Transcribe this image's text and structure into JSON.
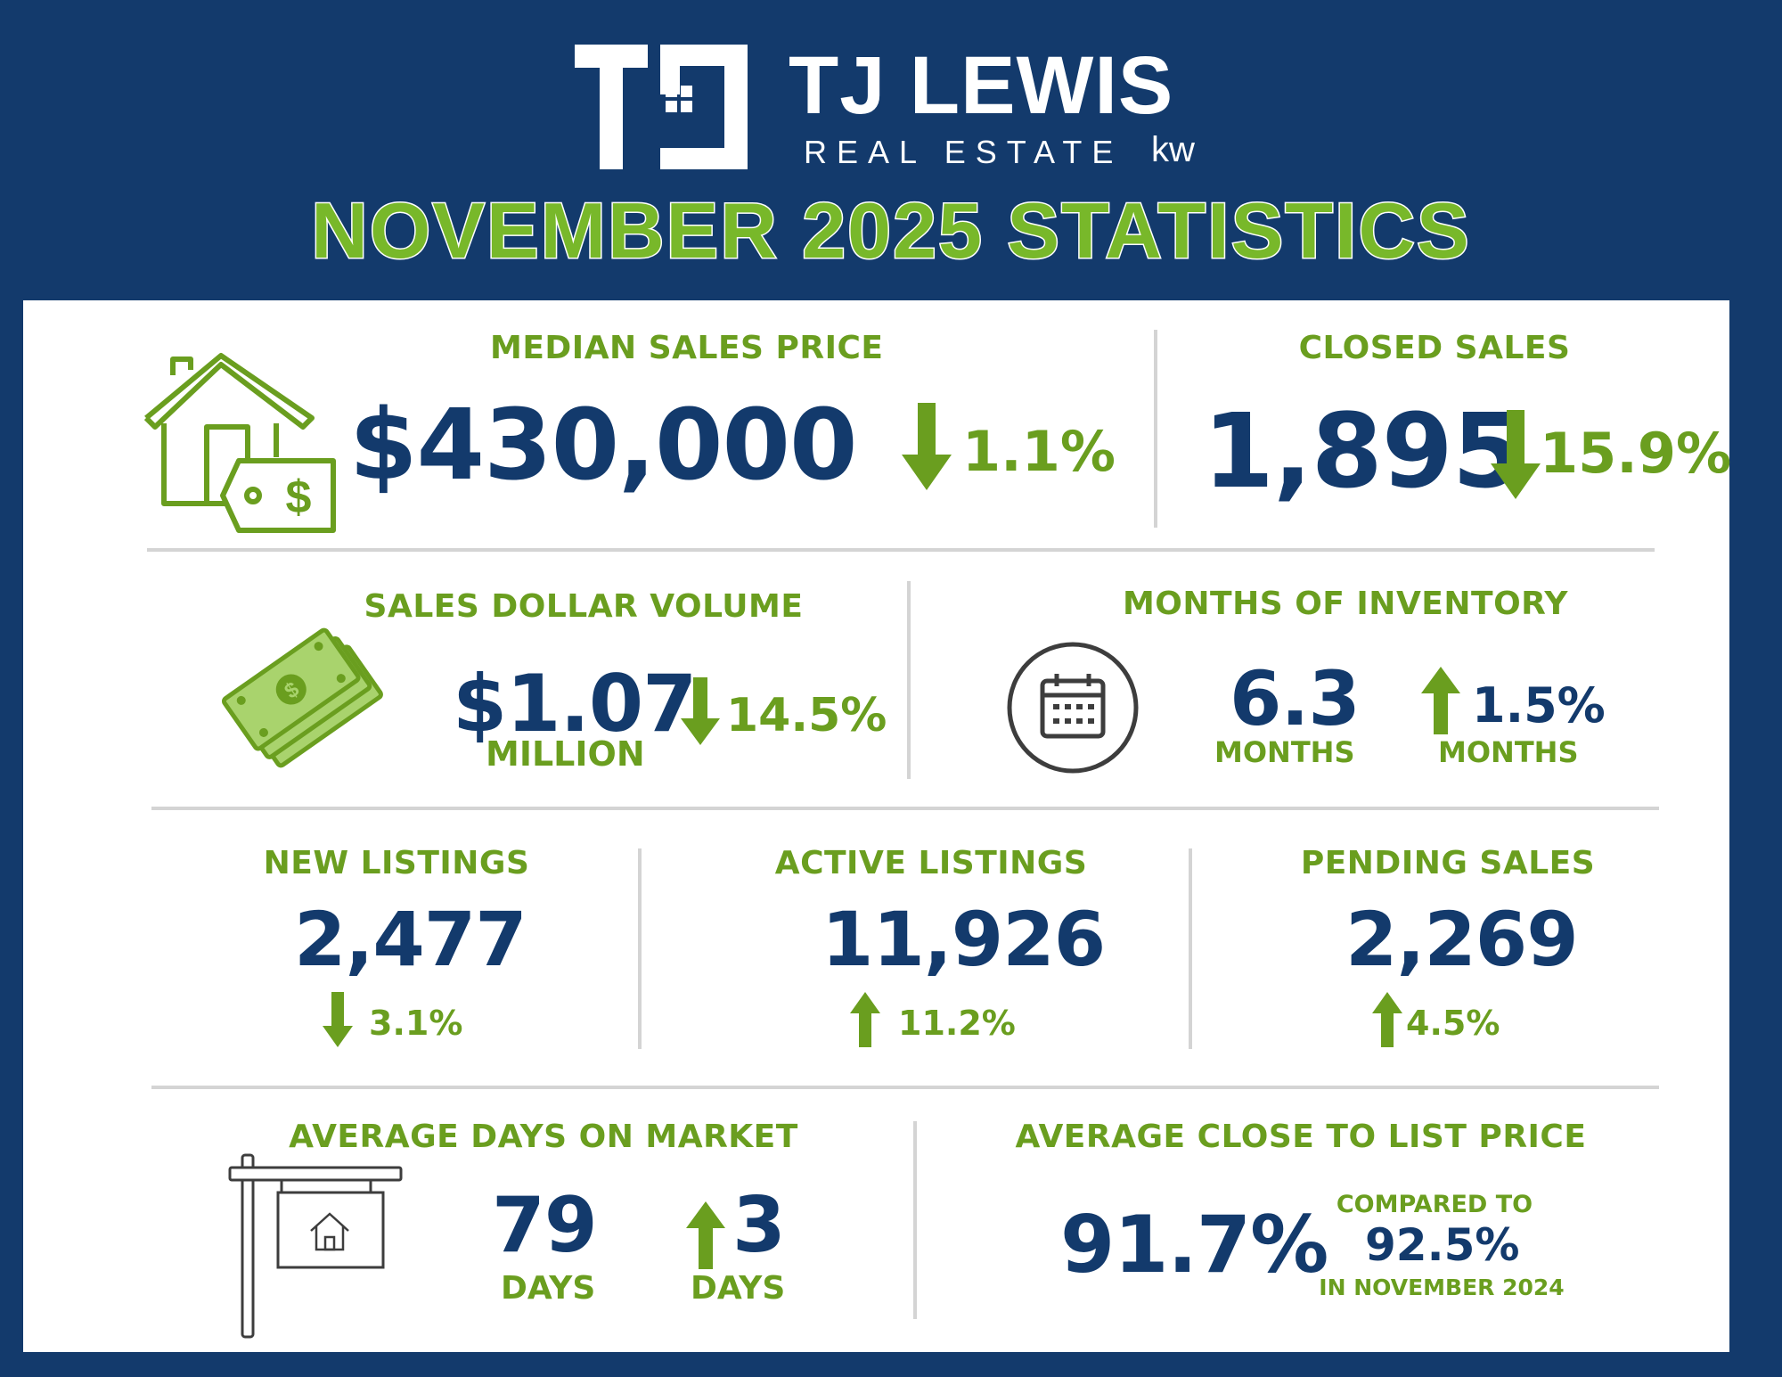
{
  "brand": {
    "name": "TJ LEWIS",
    "tagline": "REAL ESTATE",
    "affiliate": "kw"
  },
  "headline": "NOVEMBER 2025 STATISTICS",
  "colors": {
    "navy": "#133a6c",
    "green": "#6a9e1f",
    "bright_green": "#78b82a"
  },
  "median_sales_price": {
    "label": "MEDIAN SALES PRICE",
    "value": "$430,000",
    "change": "1.1%",
    "direction": "down",
    "icon": "house-price-tag-icon"
  },
  "closed_sales": {
    "label": "CLOSED SALES",
    "value": "1,895",
    "change": "15.9%",
    "direction": "down"
  },
  "sales_dollar_volume": {
    "label": "SALES DOLLAR VOLUME",
    "value": "$1.07",
    "unit": "MILLION",
    "change": "14.5%",
    "direction": "down",
    "icon": "money-bills-icon"
  },
  "months_of_inventory": {
    "label": "MONTHS OF INVENTORY",
    "value": "6.3",
    "unit": "MONTHS",
    "change": "1.5%",
    "change_unit": "MONTHS",
    "direction": "up",
    "icon": "calendar-icon"
  },
  "new_listings": {
    "label": "NEW LISTINGS",
    "value": "2,477",
    "change": "3.1%",
    "direction": "down"
  },
  "active_listings": {
    "label": "ACTIVE LISTINGS",
    "value": "11,926",
    "change": "11.2%",
    "direction": "up"
  },
  "pending_sales": {
    "label": "PENDING SALES",
    "value": "2,269",
    "change": "4.5%",
    "direction": "up"
  },
  "average_days_on_market": {
    "label": "AVERAGE DAYS ON MARKET",
    "value": "79",
    "unit": "DAYS",
    "change": "3",
    "change_unit": "DAYS",
    "direction": "up",
    "icon": "for-sale-sign-icon"
  },
  "average_close_to_list": {
    "label": "AVERAGE CLOSE TO LIST PRICE",
    "value": "91.7%",
    "compared_label": "COMPARED TO",
    "compared_value": "92.5%",
    "compared_period": "IN NOVEMBER 2024"
  }
}
